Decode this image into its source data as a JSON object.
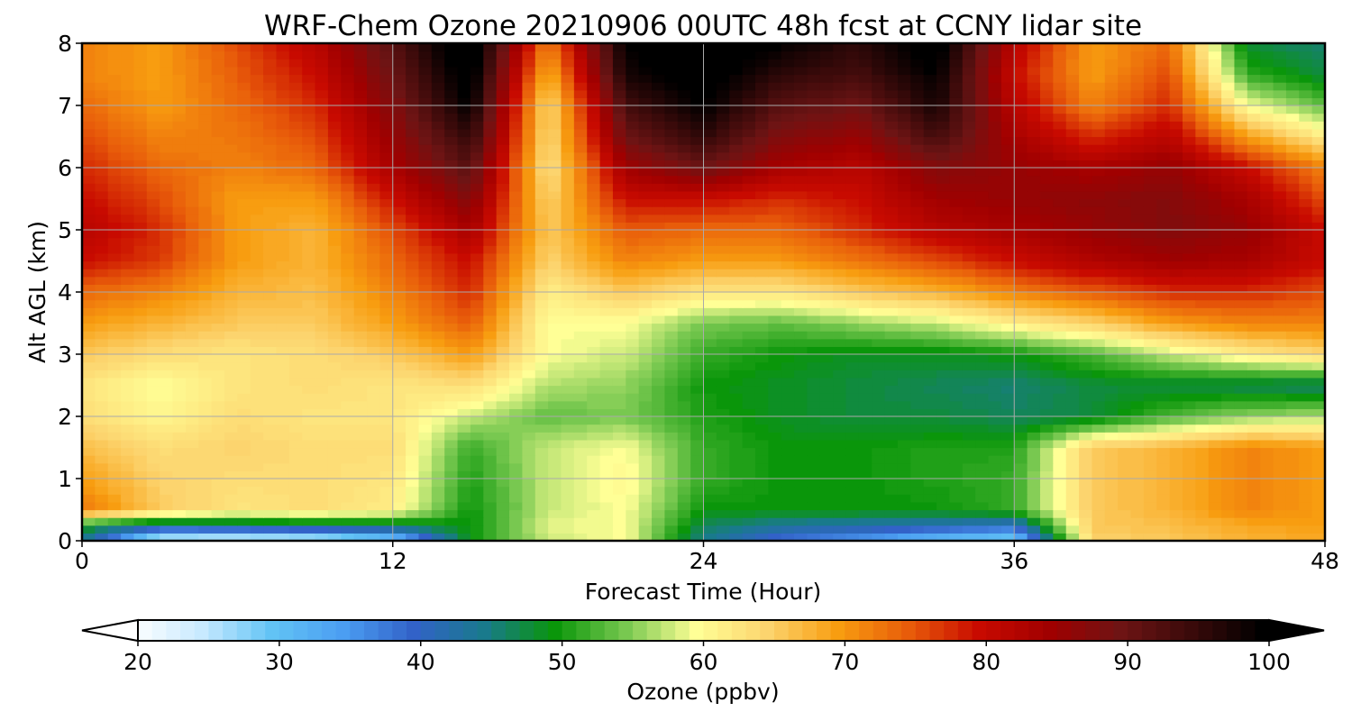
{
  "chart_data": {
    "type": "heatmap",
    "title": "WRF-Chem Ozone  20210906 00UTC 48h fcst at CCNY lidar site",
    "xlabel": "Forecast Time (Hour)",
    "ylabel": "Alt AGL (km)",
    "xlim": [
      0,
      48
    ],
    "ylim": [
      0,
      8
    ],
    "xticks": [
      0,
      12,
      24,
      36,
      48
    ],
    "yticks": [
      0,
      1,
      2,
      3,
      4,
      5,
      6,
      7,
      8
    ],
    "grid": true,
    "x_hours": [
      0,
      3,
      6,
      9,
      12,
      15,
      18,
      21,
      24,
      27,
      30,
      33,
      36,
      39,
      42,
      45,
      48
    ],
    "z_km": [
      0,
      0.25,
      0.5,
      1,
      1.5,
      2,
      2.5,
      3,
      3.5,
      4,
      4.5,
      5,
      5.5,
      6,
      6.5,
      7,
      7.5,
      8
    ],
    "values_ppbv": [
      [
        45,
        22,
        21,
        22,
        28,
        50,
        58,
        60,
        45,
        38,
        35,
        30,
        28,
        65,
        66,
        68,
        69
      ],
      [
        50,
        44,
        45,
        46,
        47,
        50,
        59,
        60,
        47,
        44,
        43,
        42,
        40,
        66,
        67,
        69,
        70
      ],
      [
        73,
        66,
        63,
        64,
        62,
        50,
        58,
        60,
        50,
        50,
        50,
        50,
        52,
        66,
        68,
        72,
        70
      ],
      [
        70,
        65,
        64,
        64,
        63,
        51,
        58,
        61,
        52,
        50,
        50,
        51,
        52,
        66,
        68,
        72,
        70
      ],
      [
        67,
        64,
        65,
        64,
        64,
        52,
        58,
        60,
        52,
        50,
        50,
        51,
        51,
        66,
        68,
        72,
        70
      ],
      [
        64,
        61,
        64,
        63,
        63,
        58,
        54,
        55,
        51,
        49,
        48,
        48,
        47,
        48,
        53,
        56,
        57
      ],
      [
        63,
        60,
        63,
        64,
        63,
        64,
        57,
        56,
        50,
        49,
        48,
        47,
        46,
        48,
        48,
        47,
        46
      ],
      [
        66,
        64,
        63,
        64,
        66,
        70,
        60,
        58,
        52,
        50,
        49,
        49,
        50,
        53,
        58,
        62,
        65
      ],
      [
        70,
        68,
        66,
        66,
        70,
        75,
        60,
        60,
        55,
        54,
        56,
        58,
        62,
        65,
        70,
        72,
        72
      ],
      [
        74,
        72,
        68,
        67,
        72,
        78,
        62,
        66,
        63,
        63,
        66,
        68,
        72,
        75,
        78,
        78,
        76
      ],
      [
        80,
        77,
        70,
        68,
        74,
        80,
        65,
        72,
        70,
        70,
        73,
        76,
        80,
        83,
        85,
        84,
        80
      ],
      [
        82,
        78,
        70,
        68,
        76,
        84,
        66,
        75,
        74,
        74,
        78,
        82,
        84,
        86,
        88,
        86,
        80
      ],
      [
        80,
        76,
        70,
        70,
        80,
        88,
        65,
        80,
        80,
        78,
        80,
        85,
        86,
        87,
        88,
        84,
        76
      ],
      [
        78,
        74,
        72,
        74,
        84,
        92,
        63,
        85,
        90,
        84,
        82,
        88,
        86,
        84,
        86,
        80,
        72
      ],
      [
        76,
        72,
        73,
        76,
        86,
        96,
        64,
        90,
        96,
        88,
        86,
        94,
        84,
        78,
        82,
        70,
        62
      ],
      [
        74,
        70,
        74,
        78,
        88,
        100,
        64,
        94,
        100,
        92,
        90,
        98,
        82,
        72,
        78,
        60,
        54
      ],
      [
        72,
        70,
        75,
        80,
        90,
        102,
        68,
        98,
        102,
        96,
        94,
        100,
        80,
        70,
        76,
        52,
        48
      ],
      [
        72,
        70,
        76,
        82,
        92,
        104,
        72,
        100,
        104,
        100,
        96,
        102,
        82,
        70,
        74,
        48,
        46
      ]
    ],
    "colorbar": {
      "label": "Ozone  (ppbv)",
      "min": 20,
      "max": 100,
      "ticks": [
        20,
        30,
        40,
        50,
        60,
        70,
        80,
        90,
        100
      ],
      "extend": "both",
      "stops": [
        {
          "v": 20,
          "c": "#ffffff"
        },
        {
          "v": 25,
          "c": "#c8eaff"
        },
        {
          "v": 30,
          "c": "#62c3f5"
        },
        {
          "v": 35,
          "c": "#4b9ef2"
        },
        {
          "v": 40,
          "c": "#3262c8"
        },
        {
          "v": 45,
          "c": "#197a8c"
        },
        {
          "v": 50,
          "c": "#0a960a"
        },
        {
          "v": 55,
          "c": "#78c850"
        },
        {
          "v": 60,
          "c": "#ffff96"
        },
        {
          "v": 65,
          "c": "#fcd46e"
        },
        {
          "v": 70,
          "c": "#f89d10"
        },
        {
          "v": 75,
          "c": "#e85c0a"
        },
        {
          "v": 80,
          "c": "#c80a00"
        },
        {
          "v": 85,
          "c": "#a00000"
        },
        {
          "v": 90,
          "c": "#6e1414"
        },
        {
          "v": 95,
          "c": "#3a0a0a"
        },
        {
          "v": 100,
          "c": "#000000"
        }
      ]
    }
  }
}
